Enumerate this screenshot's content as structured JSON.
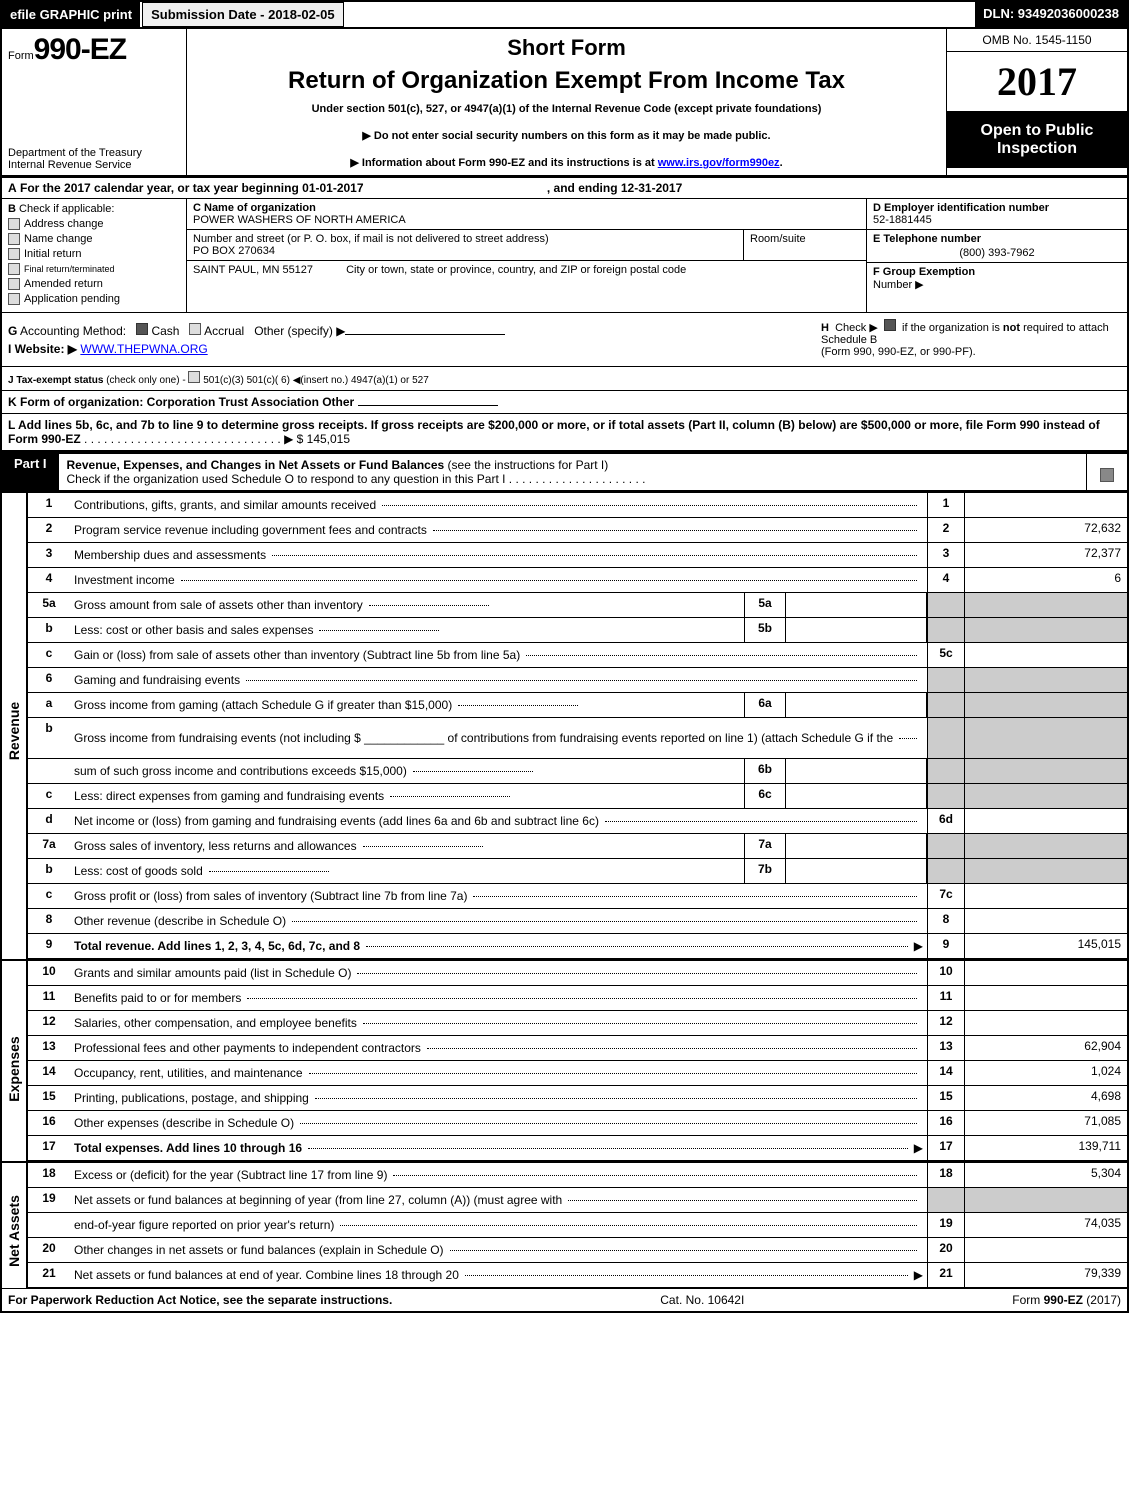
{
  "topbar": {
    "efile_btn": "efile GRAPHIC print",
    "submission": "Submission Date - 2018-02-05",
    "dln": "DLN: 93492036000238"
  },
  "header": {
    "form_prefix": "Form",
    "form_no": "990-EZ",
    "dept1": "Department of the Treasury",
    "dept2": "Internal Revenue Service",
    "short_form": "Short Form",
    "return_title": "Return of Organization Exempt From Income Tax",
    "under": "Under section 501(c), 527, or 4947(a)(1) of the Internal Revenue Code (except private foundations)",
    "note1": "▶ Do not enter social security numbers on this form as it may be made public.",
    "note2a": "▶ Information about Form 990-EZ and its instructions is at ",
    "note2link": "www.irs.gov/form990ez",
    "note2b": ".",
    "omb": "OMB No. 1545-1150",
    "year": "2017",
    "open1": "Open to Public",
    "open2": "Inspection"
  },
  "rowA": {
    "label": "A",
    "text1": "For the 2017 calendar year, or tax year beginning ",
    "begin": "01-01-2017",
    "text2": ", and ending ",
    "end": "12-31-2017"
  },
  "colB": {
    "label": "B",
    "intro": "Check if applicable:",
    "items": [
      "Address change",
      "Name change",
      "Initial return",
      "Final return/terminated",
      "Amended return",
      "Application pending"
    ]
  },
  "colC": {
    "name_lbl": "C Name of organization",
    "name_val": "POWER WASHERS OF NORTH AMERICA",
    "addr_lbl": "Number and street (or P. O. box, if mail is not delivered to street address)",
    "addr_val": "PO BOX 270634",
    "room_lbl": "Room/suite",
    "city_lbl": "City or town, state or province, country, and ZIP or foreign postal code",
    "city_val": "SAINT PAUL, MN  55127"
  },
  "colDEF": {
    "d_lbl": "D Employer identification number",
    "d_val": "52-1881445",
    "e_lbl": "E Telephone number",
    "e_val": "(800) 393-7962",
    "f_lbl": "F Group Exemption",
    "f_lbl2": "Number   ▶"
  },
  "rowG": {
    "label": "G",
    "text": "Accounting Method:",
    "cash": "Cash",
    "accrual": "Accrual",
    "other": "Other (specify) ▶"
  },
  "rowH": {
    "label": "H",
    "text1": "Check ▶",
    "text2": "if the organization is ",
    "not": "not",
    "text3": " required to attach Schedule B",
    "text4": "(Form 990, 990-EZ, or 990-PF)."
  },
  "rowI": {
    "label": "I Website: ▶",
    "link": "WWW.THEPWNA.ORG"
  },
  "rowJ": {
    "label": "J Tax-exempt status",
    "small": "(check only one) -",
    "opts": "501(c)(3)    501(c)( 6) ◀(insert no.)    4947(a)(1) or    527"
  },
  "rowK": {
    "text": "K Form of organization:    Corporation    Trust    Association    Other"
  },
  "rowL": {
    "text": "L Add lines 5b, 6c, and 7b to line 9 to determine gross receipts. If gross receipts are $200,000 or more, or if total assets (Part II, column (B) below) are $500,000 or more, file Form 990 instead of Form 990-EZ",
    "amt_lbl": "▶ $ ",
    "amt": "145,015"
  },
  "partI": {
    "label": "Part I",
    "title": "Revenue, Expenses, and Changes in Net Assets or Fund Balances ",
    "title2": "(see the instructions for Part I)",
    "sub": "Check if the organization used Schedule O to respond to any question in this Part I"
  },
  "side_labels": {
    "revenue": "Revenue",
    "expenses": "Expenses",
    "netassets": "Net Assets"
  },
  "lines": [
    {
      "n": "1",
      "d": "Contributions, gifts, grants, and similar amounts received",
      "rn": "1",
      "rv": ""
    },
    {
      "n": "2",
      "d": "Program service revenue including government fees and contracts",
      "rn": "2",
      "rv": "72,632"
    },
    {
      "n": "3",
      "d": "Membership dues and assessments",
      "rn": "3",
      "rv": "72,377"
    },
    {
      "n": "4",
      "d": "Investment income",
      "rn": "4",
      "rv": "6"
    },
    {
      "n": "5a",
      "d": "Gross amount from sale of assets other than inventory",
      "mini": "5a",
      "rn_grey": true
    },
    {
      "n": "b",
      "d": "Less: cost or other basis and sales expenses",
      "mini": "5b",
      "rn_grey": true
    },
    {
      "n": "c",
      "d": "Gain or (loss) from sale of assets other than inventory (Subtract line 5b from line 5a)",
      "rn": "5c",
      "rv": ""
    },
    {
      "n": "6",
      "d": "Gaming and fundraising events",
      "no_right": true,
      "rn_grey": true
    },
    {
      "n": "a",
      "d": "Gross income from gaming (attach Schedule G if greater than $15,000)",
      "mini": "6a",
      "rn_grey": true
    },
    {
      "n": "b",
      "d": "Gross income from fundraising events (not including $ ____________ of contributions from fundraising events reported on line 1) (attach Schedule G if the",
      "no_right": true,
      "tall": true,
      "rn_grey": true
    },
    {
      "n": "",
      "d": "sum of such gross income and contributions exceeds $15,000)",
      "mini": "6b",
      "rn_grey": true
    },
    {
      "n": "c",
      "d": "Less: direct expenses from gaming and fundraising events",
      "mini": "6c",
      "rn_grey": true
    },
    {
      "n": "d",
      "d": "Net income or (loss) from gaming and fundraising events (add lines 6a and 6b and subtract line 6c)",
      "rn": "6d",
      "rv": ""
    },
    {
      "n": "7a",
      "d": "Gross sales of inventory, less returns and allowances",
      "mini": "7a",
      "rn_grey": true
    },
    {
      "n": "b",
      "d": "Less: cost of goods sold",
      "mini": "7b",
      "rn_grey": true
    },
    {
      "n": "c",
      "d": "Gross profit or (loss) from sales of inventory (Subtract line 7b from line 7a)",
      "rn": "7c",
      "rv": ""
    },
    {
      "n": "8",
      "d": "Other revenue (describe in Schedule O)",
      "rn": "8",
      "rv": ""
    },
    {
      "n": "9",
      "d": "Total revenue. Add lines 1, 2, 3, 4, 5c, 6d, 7c, and 8",
      "rn": "9",
      "rv": "145,015",
      "bold": true,
      "arrow": true
    }
  ],
  "exp_lines": [
    {
      "n": "10",
      "d": "Grants and similar amounts paid (list in Schedule O)",
      "rn": "10",
      "rv": ""
    },
    {
      "n": "11",
      "d": "Benefits paid to or for members",
      "rn": "11",
      "rv": ""
    },
    {
      "n": "12",
      "d": "Salaries, other compensation, and employee benefits",
      "rn": "12",
      "rv": ""
    },
    {
      "n": "13",
      "d": "Professional fees and other payments to independent contractors",
      "rn": "13",
      "rv": "62,904"
    },
    {
      "n": "14",
      "d": "Occupancy, rent, utilities, and maintenance",
      "rn": "14",
      "rv": "1,024"
    },
    {
      "n": "15",
      "d": "Printing, publications, postage, and shipping",
      "rn": "15",
      "rv": "4,698"
    },
    {
      "n": "16",
      "d": "Other expenses (describe in Schedule O)",
      "rn": "16",
      "rv": "71,085"
    },
    {
      "n": "17",
      "d": "Total expenses. Add lines 10 through 16",
      "rn": "17",
      "rv": "139,711",
      "bold": true,
      "arrow": true
    }
  ],
  "na_lines": [
    {
      "n": "18",
      "d": "Excess or (deficit) for the year (Subtract line 17 from line 9)",
      "rn": "18",
      "rv": "5,304"
    },
    {
      "n": "19",
      "d": "Net assets or fund balances at beginning of year (from line 27, column (A)) (must agree with",
      "no_right": true,
      "rn_grey": true
    },
    {
      "n": "",
      "d": "end-of-year figure reported on prior year's return)",
      "rn": "19",
      "rv": "74,035"
    },
    {
      "n": "20",
      "d": "Other changes in net assets or fund balances (explain in Schedule O)",
      "rn": "20",
      "rv": ""
    },
    {
      "n": "21",
      "d": "Net assets or fund balances at end of year. Combine lines 18 through 20",
      "rn": "21",
      "rv": "79,339",
      "arrow": true
    }
  ],
  "footer": {
    "left": "For Paperwork Reduction Act Notice, see the separate instructions.",
    "mid": "Cat. No. 10642I",
    "right_a": "Form ",
    "right_b": "990-EZ",
    "right_c": " (2017)"
  }
}
